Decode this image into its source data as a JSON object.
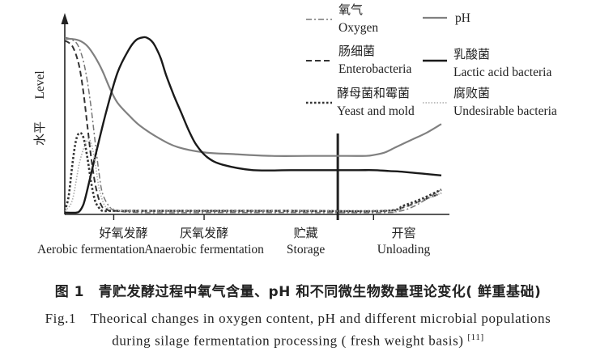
{
  "chart_data": {
    "type": "line",
    "title": "",
    "ylabel_cn": "水平",
    "ylabel_en": "Level",
    "xlim": [
      0,
      100
    ],
    "ylim": [
      0,
      100
    ],
    "stage_boundaries": [
      37,
      72.5
    ],
    "phases": [
      {
        "cn": "好氧发酵",
        "en": "Aerobic fermentation",
        "x": 13
      },
      {
        "cn": "厌氧发酵",
        "en": "Anaerobic fermentation",
        "x": 37
      },
      {
        "cn": "贮藏",
        "en": "Storage",
        "x": 64
      },
      {
        "cn": "开窖",
        "en": "Unloading",
        "x": 90
      }
    ],
    "series": [
      {
        "key": "oxygen",
        "name_cn": "氧气",
        "name_en": "Oxygen",
        "color": "#777777",
        "stroke": "dashdot",
        "width": 1.5,
        "x": [
          0,
          1.5,
          3,
          4,
          5,
          6,
          7,
          8,
          9,
          10,
          12,
          14,
          20,
          40,
          60,
          85,
          88,
          91,
          94,
          97,
          100
        ],
        "y": [
          100,
          99,
          97,
          93,
          86,
          75,
          60,
          42,
          25,
          12,
          4,
          2,
          1,
          1,
          1,
          1,
          1.5,
          3,
          6,
          10,
          14
        ]
      },
      {
        "key": "ph",
        "name_cn": "",
        "name_en": "pH",
        "color": "#808080",
        "stroke": "solid",
        "width": 2.2,
        "x": [
          0,
          2,
          4,
          6,
          8,
          10,
          12,
          14,
          17,
          20,
          25,
          30,
          37,
          45,
          55,
          65,
          75,
          80,
          82,
          85,
          88,
          92,
          96,
          100
        ],
        "y": [
          99,
          99,
          98,
          95,
          89,
          81,
          71,
          63,
          56,
          50,
          43,
          38,
          35,
          34,
          33,
          33,
          33,
          33,
          33.5,
          35,
          38,
          42,
          46,
          51
        ]
      },
      {
        "key": "enterobacteria",
        "name_cn": "肠细菌",
        "name_en": "Enterobacteria",
        "color": "#333333",
        "stroke": "dashed",
        "width": 2,
        "x": [
          0,
          1,
          2,
          3,
          4,
          5,
          6,
          7,
          8,
          9,
          10,
          11,
          12,
          14,
          20,
          40,
          60,
          85,
          90,
          95,
          100
        ],
        "y": [
          98,
          97,
          95,
          90,
          82,
          68,
          50,
          32,
          18,
          9,
          4,
          3,
          2,
          2,
          2,
          2,
          2,
          2,
          4,
          8,
          12
        ]
      },
      {
        "key": "lactic",
        "name_cn": "乳酸菌",
        "name_en": "Lactic acid bacteria",
        "color": "#1a1a1a",
        "stroke": "solid",
        "width": 2.4,
        "x": [
          0,
          3,
          4,
          5,
          6,
          8,
          11,
          14,
          17,
          19,
          21,
          22,
          23,
          24,
          25.5,
          27,
          29,
          31,
          33,
          35,
          38,
          42,
          50,
          60,
          70,
          78,
          82,
          86,
          90,
          95,
          100
        ],
        "y": [
          1,
          1,
          2,
          6,
          14,
          32,
          58,
          80,
          93,
          98.5,
          100,
          99.5,
          98,
          95,
          88,
          78,
          67,
          57,
          47,
          39,
          32,
          28,
          25,
          25,
          25,
          25,
          25,
          24.5,
          24,
          23,
          22
        ]
      },
      {
        "key": "yeast",
        "name_cn": "酵母菌和霉菌",
        "name_en": "Yeast and mold",
        "color": "#333333",
        "stroke": "dotted",
        "width": 2.6,
        "x": [
          0,
          1,
          2,
          3,
          4,
          5,
          6,
          7,
          8,
          9,
          10,
          12,
          14,
          20,
          40,
          60,
          85,
          90,
          95,
          100
        ],
        "y": [
          2,
          10,
          28,
          42,
          46,
          43,
          32,
          18,
          8,
          4,
          2,
          2,
          2,
          2,
          2,
          2,
          2,
          5,
          9,
          14
        ]
      },
      {
        "key": "undesirable",
        "name_cn": "腐败菌",
        "name_en": "Undesirable bacteria",
        "color": "#aaaaaa",
        "stroke": "dotted-fine",
        "width": 1.6,
        "x": [
          0,
          2,
          4,
          6,
          7,
          8,
          9,
          10,
          11,
          13,
          15,
          20,
          40,
          60,
          85,
          90,
          95,
          100
        ],
        "y": [
          2,
          8,
          30,
          42,
          40,
          30,
          16,
          8,
          4,
          3,
          2,
          2,
          2,
          2,
          2,
          4,
          8,
          12
        ]
      }
    ]
  },
  "caption": {
    "cn": "图 1　青贮发酵过程中氧气含量、pH 和不同微生物数量理论变化( 鲜重基础)",
    "en_line1": "Fig.1　Theorical changes in oxygen content, pH and different microbial populations",
    "en_line2": "during silage fermentation processing ( fresh weight basis)",
    "ref": "[11]"
  }
}
